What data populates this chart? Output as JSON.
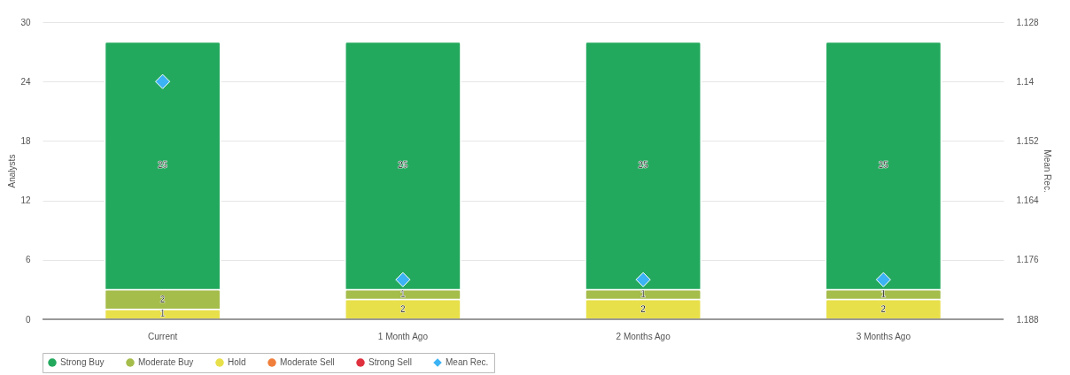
{
  "chart_data": {
    "type": "bar",
    "stacked": true,
    "ylabel": "Analysts",
    "y2label": "Mean Rec.",
    "categories": [
      "Current",
      "1 Month Ago",
      "2 Months Ago",
      "3 Months Ago"
    ],
    "series": [
      {
        "name": "Strong Sell",
        "color": "#e0313f",
        "values": [
          0,
          0,
          0,
          0
        ],
        "value_labels": [
          null,
          null,
          null,
          null
        ]
      },
      {
        "name": "Moderate Sell",
        "color": "#f07f3c",
        "values": [
          0,
          0,
          0,
          0
        ],
        "value_labels": [
          null,
          null,
          null,
          null
        ]
      },
      {
        "name": "Hold",
        "color": "#e8e04a",
        "values": [
          1,
          2,
          2,
          2
        ],
        "value_labels": [
          "1",
          "2",
          "2",
          "2"
        ]
      },
      {
        "name": "Moderate Buy",
        "color": "#a5bd4a",
        "values": [
          2,
          1,
          1,
          1
        ],
        "value_labels": [
          "2",
          "1",
          "1",
          "1"
        ]
      },
      {
        "name": "Strong Buy",
        "color": "#23a95d",
        "values": [
          25,
          25,
          25,
          25
        ],
        "value_labels": [
          "25",
          "25",
          "25",
          "25"
        ]
      },
      {
        "name": "Mean Rec.",
        "type": "scatter",
        "axis": "y2",
        "marker": "diamond",
        "color": "#3bb3f5",
        "values": [
          1.14,
          1.18,
          1.18,
          1.18
        ]
      }
    ],
    "ylim": [
      0,
      30
    ],
    "yticks": [
      0,
      6,
      12,
      18,
      24,
      30
    ],
    "y2lim": [
      1.188,
      1.128
    ],
    "y2ticks": [
      1.188,
      1.176,
      1.164,
      1.152,
      1.14,
      1.128
    ],
    "grid": "y",
    "legend": "bottom"
  }
}
